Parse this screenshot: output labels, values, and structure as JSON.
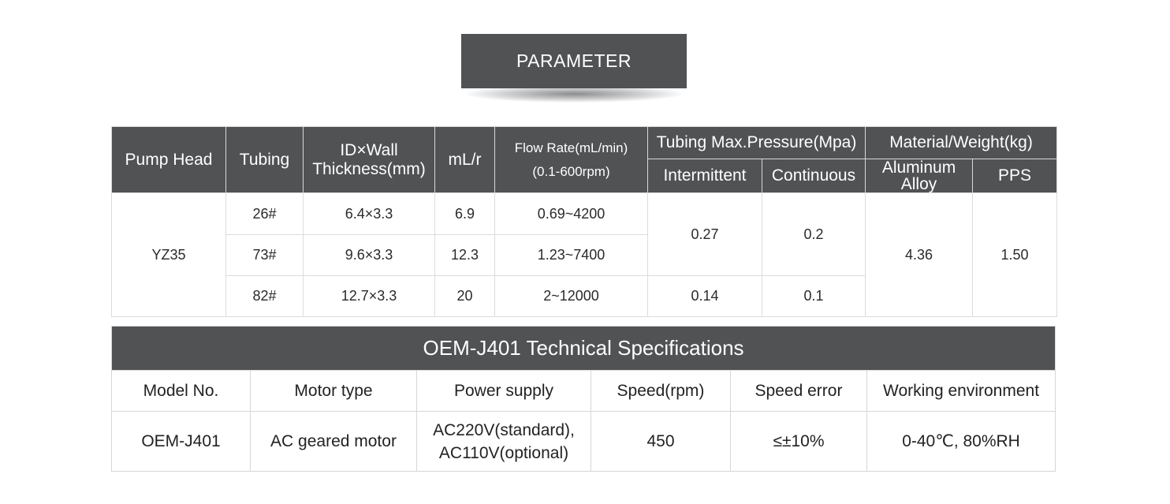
{
  "banner": {
    "title": "PARAMETER"
  },
  "param_table": {
    "headers": {
      "pump_head": "Pump Head",
      "tubing": "Tubing",
      "id_wall_line1": "ID×Wall",
      "id_wall_line2": "Thickness(mm)",
      "ml_r": "mL/r",
      "flow_line1": "Flow Rate(mL/min)",
      "flow_line2": "(0.1-600rpm)",
      "pressure": "Tubing Max.Pressure(Mpa)",
      "intermittent": "Intermittent",
      "continuous": "Continuous",
      "material": "Material/Weight(kg)",
      "aluminum_line1": "Aluminum",
      "aluminum_line2": "Alloy",
      "pps": "PPS"
    },
    "pump_head_value": "YZ35",
    "rows": [
      {
        "tubing": "26#",
        "id_wall": "6.4×3.3",
        "ml_r": "6.9",
        "flow": "0.69~4200"
      },
      {
        "tubing": "73#",
        "id_wall": "9.6×3.3",
        "ml_r": "12.3",
        "flow": "1.23~7400"
      },
      {
        "tubing": "82#",
        "id_wall": "12.7×3.3",
        "ml_r": "20",
        "flow": "2~12000"
      }
    ],
    "pressure_group1": {
      "intermittent": "0.27",
      "continuous": "0.2"
    },
    "pressure_group2": {
      "intermittent": "0.14",
      "continuous": "0.1"
    },
    "weight": {
      "aluminum": "4.36",
      "pps": "1.50"
    }
  },
  "spec_table": {
    "title": "OEM-J401 Technical Specifications",
    "headers": [
      "Model No.",
      "Motor type",
      "Power supply",
      "Speed(rpm)",
      "Speed error",
      "Working environment"
    ],
    "values": {
      "model": "OEM-J401",
      "motor": "AC geared motor",
      "power_line1": "AC220V(standard),",
      "power_line2": "AC110V(optional)",
      "speed": "450",
      "speed_error": "≤±10%",
      "environment": "0-40℃, 80%RH"
    }
  },
  "colors": {
    "header_bg": "#505254",
    "header_text": "#ffffff",
    "border": "#dcdcdc"
  }
}
